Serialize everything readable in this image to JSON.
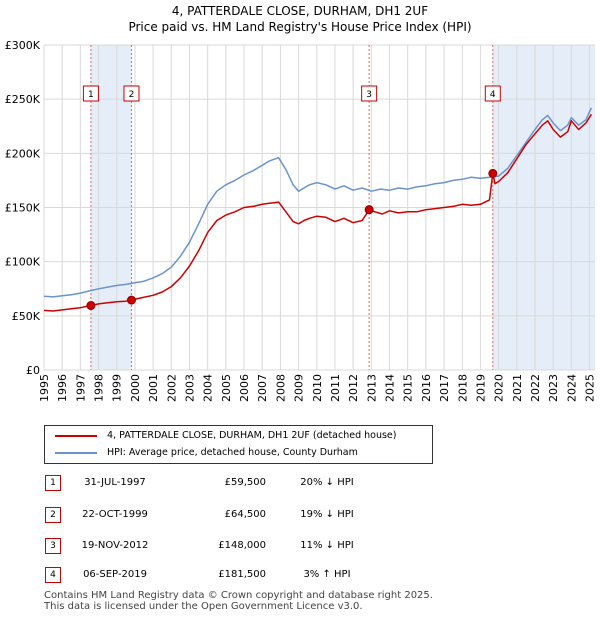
{
  "chart_data": {
    "type": "line",
    "title": "4, PATTERDALE CLOSE, DURHAM, DH1 2UF",
    "subtitle": "Price paid vs. HM Land Registry's House Price Index (HPI)",
    "xlim": [
      1995,
      2025.3
    ],
    "ylim": [
      0,
      300000
    ],
    "ytick_values": [
      0,
      50000,
      100000,
      150000,
      200000,
      250000,
      300000
    ],
    "ytick_labels": [
      "£0",
      "£50K",
      "£100K",
      "£150K",
      "£200K",
      "£250K",
      "£300K"
    ],
    "xtick_labels": [
      "1995",
      "1996",
      "1997",
      "1998",
      "1999",
      "2000",
      "2001",
      "2002",
      "2003",
      "2004",
      "2005",
      "2006",
      "2007",
      "2008",
      "2009",
      "2010",
      "2011",
      "2012",
      "2013",
      "2014",
      "2015",
      "2016",
      "2017",
      "2018",
      "2019",
      "2020",
      "2021",
      "2022",
      "2023",
      "2024",
      "2025"
    ],
    "series": [
      {
        "name": "4, PATTERDALE CLOSE, DURHAM, DH1 2UF (detached house)",
        "color": "#cc0000",
        "x": [
          1995.0,
          1995.5,
          1996.0,
          1996.5,
          1997.0,
          1997.58,
          1998.0,
          1998.5,
          1999.0,
          1999.5,
          1999.81,
          2000.3,
          2001.0,
          2001.5,
          2002.0,
          2002.5,
          2003.0,
          2003.5,
          2004.0,
          2004.5,
          2005.0,
          2005.5,
          2006.0,
          2006.5,
          2007.0,
          2007.4,
          2007.9,
          2008.3,
          2008.7,
          2009.0,
          2009.3,
          2009.6,
          2010.0,
          2010.5,
          2011.0,
          2011.5,
          2012.0,
          2012.5,
          2012.88,
          2013.2,
          2013.6,
          2014.0,
          2014.5,
          2015.0,
          2015.5,
          2016.0,
          2016.5,
          2017.0,
          2017.5,
          2018.0,
          2018.5,
          2019.0,
          2019.5,
          2019.68,
          2019.8,
          2020.0,
          2020.5,
          2021.0,
          2021.5,
          2022.0,
          2022.4,
          2022.7,
          2023.0,
          2023.4,
          2023.8,
          2024.0,
          2024.4,
          2024.8,
          2025.1
        ],
        "values": [
          55000,
          54500,
          55500,
          56500,
          57500,
          59500,
          61000,
          62000,
          63000,
          63500,
          64500,
          66500,
          69000,
          72000,
          77000,
          85000,
          96000,
          110000,
          127000,
          138000,
          143000,
          146000,
          150000,
          151000,
          153000,
          154000,
          155000,
          146000,
          137000,
          135000,
          138000,
          140000,
          142000,
          141000,
          137000,
          140000,
          136000,
          138000,
          148000,
          146000,
          144000,
          147000,
          145000,
          146000,
          146000,
          148000,
          149000,
          150000,
          151000,
          153000,
          152000,
          153000,
          157000,
          181500,
          172000,
          174000,
          182000,
          195000,
          208000,
          218000,
          226000,
          230000,
          222000,
          215000,
          220000,
          230000,
          222000,
          228000,
          236000
        ]
      },
      {
        "name": "HPI: Average price, detached house, County Durham",
        "color": "#6a93cf",
        "x": [
          1995.0,
          1995.5,
          1996.0,
          1996.5,
          1997.0,
          1997.5,
          1998.0,
          1998.5,
          1999.0,
          1999.5,
          2000.0,
          2000.5,
          2001.0,
          2001.5,
          2002.0,
          2002.5,
          2003.0,
          2003.5,
          2004.0,
          2004.5,
          2005.0,
          2005.5,
          2006.0,
          2006.5,
          2007.0,
          2007.4,
          2007.9,
          2008.3,
          2008.7,
          2009.0,
          2009.3,
          2009.6,
          2010.0,
          2010.5,
          2011.0,
          2011.5,
          2012.0,
          2012.5,
          2013.0,
          2013.5,
          2014.0,
          2014.5,
          2015.0,
          2015.5,
          2016.0,
          2016.5,
          2017.0,
          2017.5,
          2018.0,
          2018.5,
          2019.0,
          2019.5,
          2020.0,
          2020.5,
          2021.0,
          2021.5,
          2022.0,
          2022.4,
          2022.7,
          2023.0,
          2023.4,
          2023.8,
          2024.0,
          2024.4,
          2024.8,
          2025.1
        ],
        "values": [
          68000,
          67500,
          68500,
          69500,
          71000,
          73000,
          75000,
          76500,
          78000,
          79000,
          80500,
          82000,
          85000,
          89000,
          95000,
          105000,
          118000,
          135000,
          153000,
          165000,
          171000,
          175000,
          180000,
          184000,
          189000,
          193000,
          196000,
          185000,
          171000,
          165000,
          168000,
          171000,
          173000,
          171000,
          167000,
          170000,
          166000,
          168000,
          165000,
          167000,
          166000,
          168000,
          167000,
          169000,
          170000,
          172000,
          173000,
          175000,
          176000,
          178000,
          177000,
          178000,
          179000,
          186000,
          198000,
          210000,
          222000,
          231000,
          235000,
          228000,
          221000,
          226000,
          233000,
          226000,
          231000,
          242000
        ]
      }
    ],
    "transactions": [
      {
        "num": "1",
        "date": "31-JUL-1997",
        "price": "£59,500",
        "hpi": "20% ↓ HPI",
        "x": 1997.58,
        "value": 59500
      },
      {
        "num": "2",
        "date": "22-OCT-1999",
        "price": "£64,500",
        "hpi": "19% ↓ HPI",
        "x": 1999.81,
        "value": 64500
      },
      {
        "num": "3",
        "date": "19-NOV-2012",
        "price": "£148,000",
        "hpi": "11% ↓ HPI",
        "x": 2012.88,
        "value": 148000
      },
      {
        "num": "4",
        "date": "06-SEP-2019",
        "price": "£181,500",
        "hpi": "3% ↑ HPI",
        "x": 2019.68,
        "value": 181500
      }
    ],
    "shaded_ranges": [
      [
        1997.58,
        1999.81
      ],
      [
        2019.68,
        2025.3
      ]
    ]
  },
  "legend": {
    "property_label": "4, PATTERDALE CLOSE, DURHAM, DH1 2UF (detached house)",
    "hpi_label": "HPI: Average price, detached house, County Durham"
  },
  "footer": {
    "line1": "Contains HM Land Registry data © Crown copyright and database right 2025.",
    "line2": "This data is licensed under the Open Government Licence v3.0."
  }
}
